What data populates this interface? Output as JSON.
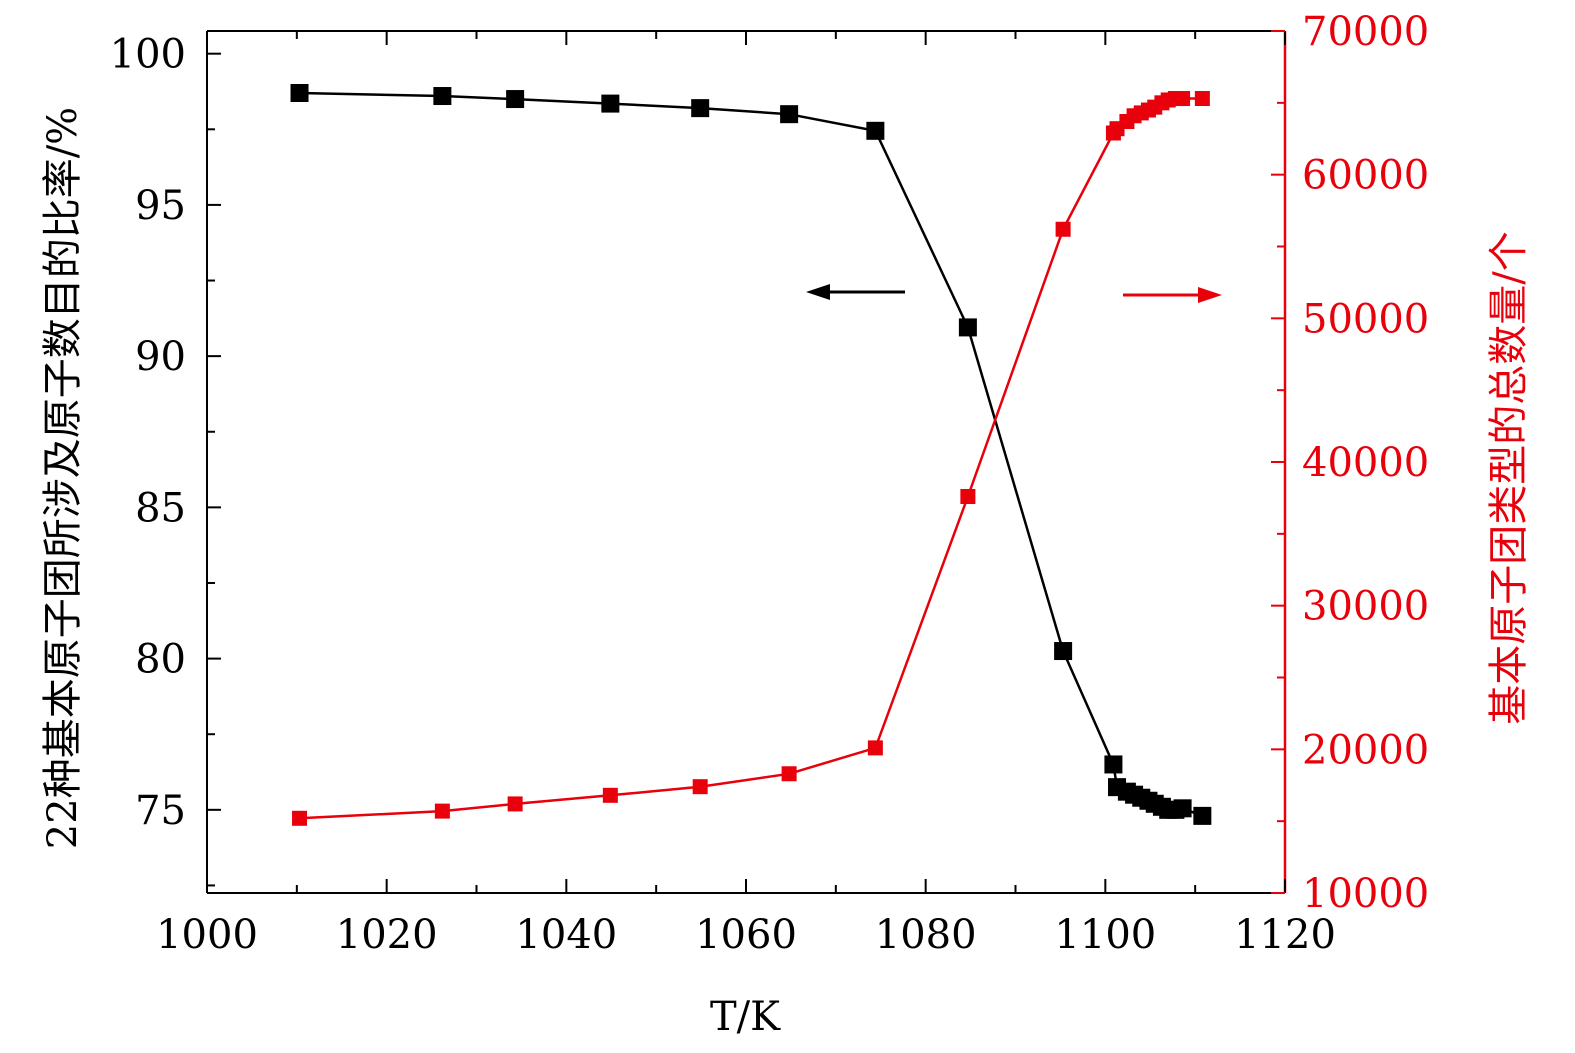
{
  "chart_data": {
    "type": "line",
    "xlabel": "T/K",
    "ylabel_left": "22种基本原子团所涉及原子数目的比率/%",
    "ylabel_right": "基本原子团类型的总数量/个",
    "xlim": [
      1000,
      1120
    ],
    "ylim_left": [
      72.25,
      100.75
    ],
    "ylim_right": [
      10000,
      70000
    ],
    "x_ticks": [
      "1000",
      "1020",
      "1040",
      "1060",
      "1080",
      "1100",
      "1120"
    ],
    "y_left_ticks": [
      "75",
      "80",
      "85",
      "90",
      "95",
      "100"
    ],
    "y_right_ticks": [
      "10000",
      "20000",
      "30000",
      "40000",
      "50000",
      "60000",
      "70000"
    ],
    "grid": false,
    "colors": {
      "left": "#000000",
      "right": "#e8000b"
    },
    "series": [
      {
        "axis": "left",
        "color": "#000000",
        "x": [
          1010.3,
          1026.2,
          1034.3,
          1044.9,
          1054.9,
          1064.8,
          1074.4,
          1084.7,
          1095.3,
          1100.9,
          1101.3,
          1102.4,
          1103.2,
          1104.0,
          1104.8,
          1105.5,
          1106.3,
          1107.0,
          1107.8,
          1108.6,
          1110.8
        ],
        "y": [
          98.7,
          98.6,
          98.5,
          98.35,
          98.2,
          98.0,
          97.45,
          90.95,
          80.25,
          76.5,
          75.75,
          75.6,
          75.5,
          75.4,
          75.3,
          75.2,
          75.1,
          75.0,
          75.0,
          75.05,
          74.8
        ]
      },
      {
        "axis": "right",
        "color": "#e8000b",
        "x": [
          1010.3,
          1026.2,
          1034.3,
          1044.9,
          1054.9,
          1064.8,
          1074.4,
          1084.7,
          1095.3,
          1100.9,
          1101.3,
          1102.4,
          1103.2,
          1104.0,
          1104.8,
          1105.5,
          1106.3,
          1107.0,
          1107.8,
          1108.6,
          1110.8
        ],
        "y": [
          15200,
          15700,
          16200,
          16800,
          17400,
          18300,
          20100,
          37600,
          56200,
          62900,
          63200,
          63700,
          64100,
          64300,
          64500,
          64700,
          65000,
          65200,
          65300,
          65300,
          65300
        ]
      }
    ],
    "annotations": [
      {
        "type": "arrow",
        "direction": "left",
        "points_to": "left-axis",
        "color": "#000000"
      },
      {
        "type": "arrow",
        "direction": "right",
        "points_to": "right-axis",
        "color": "#e8000b"
      }
    ]
  }
}
